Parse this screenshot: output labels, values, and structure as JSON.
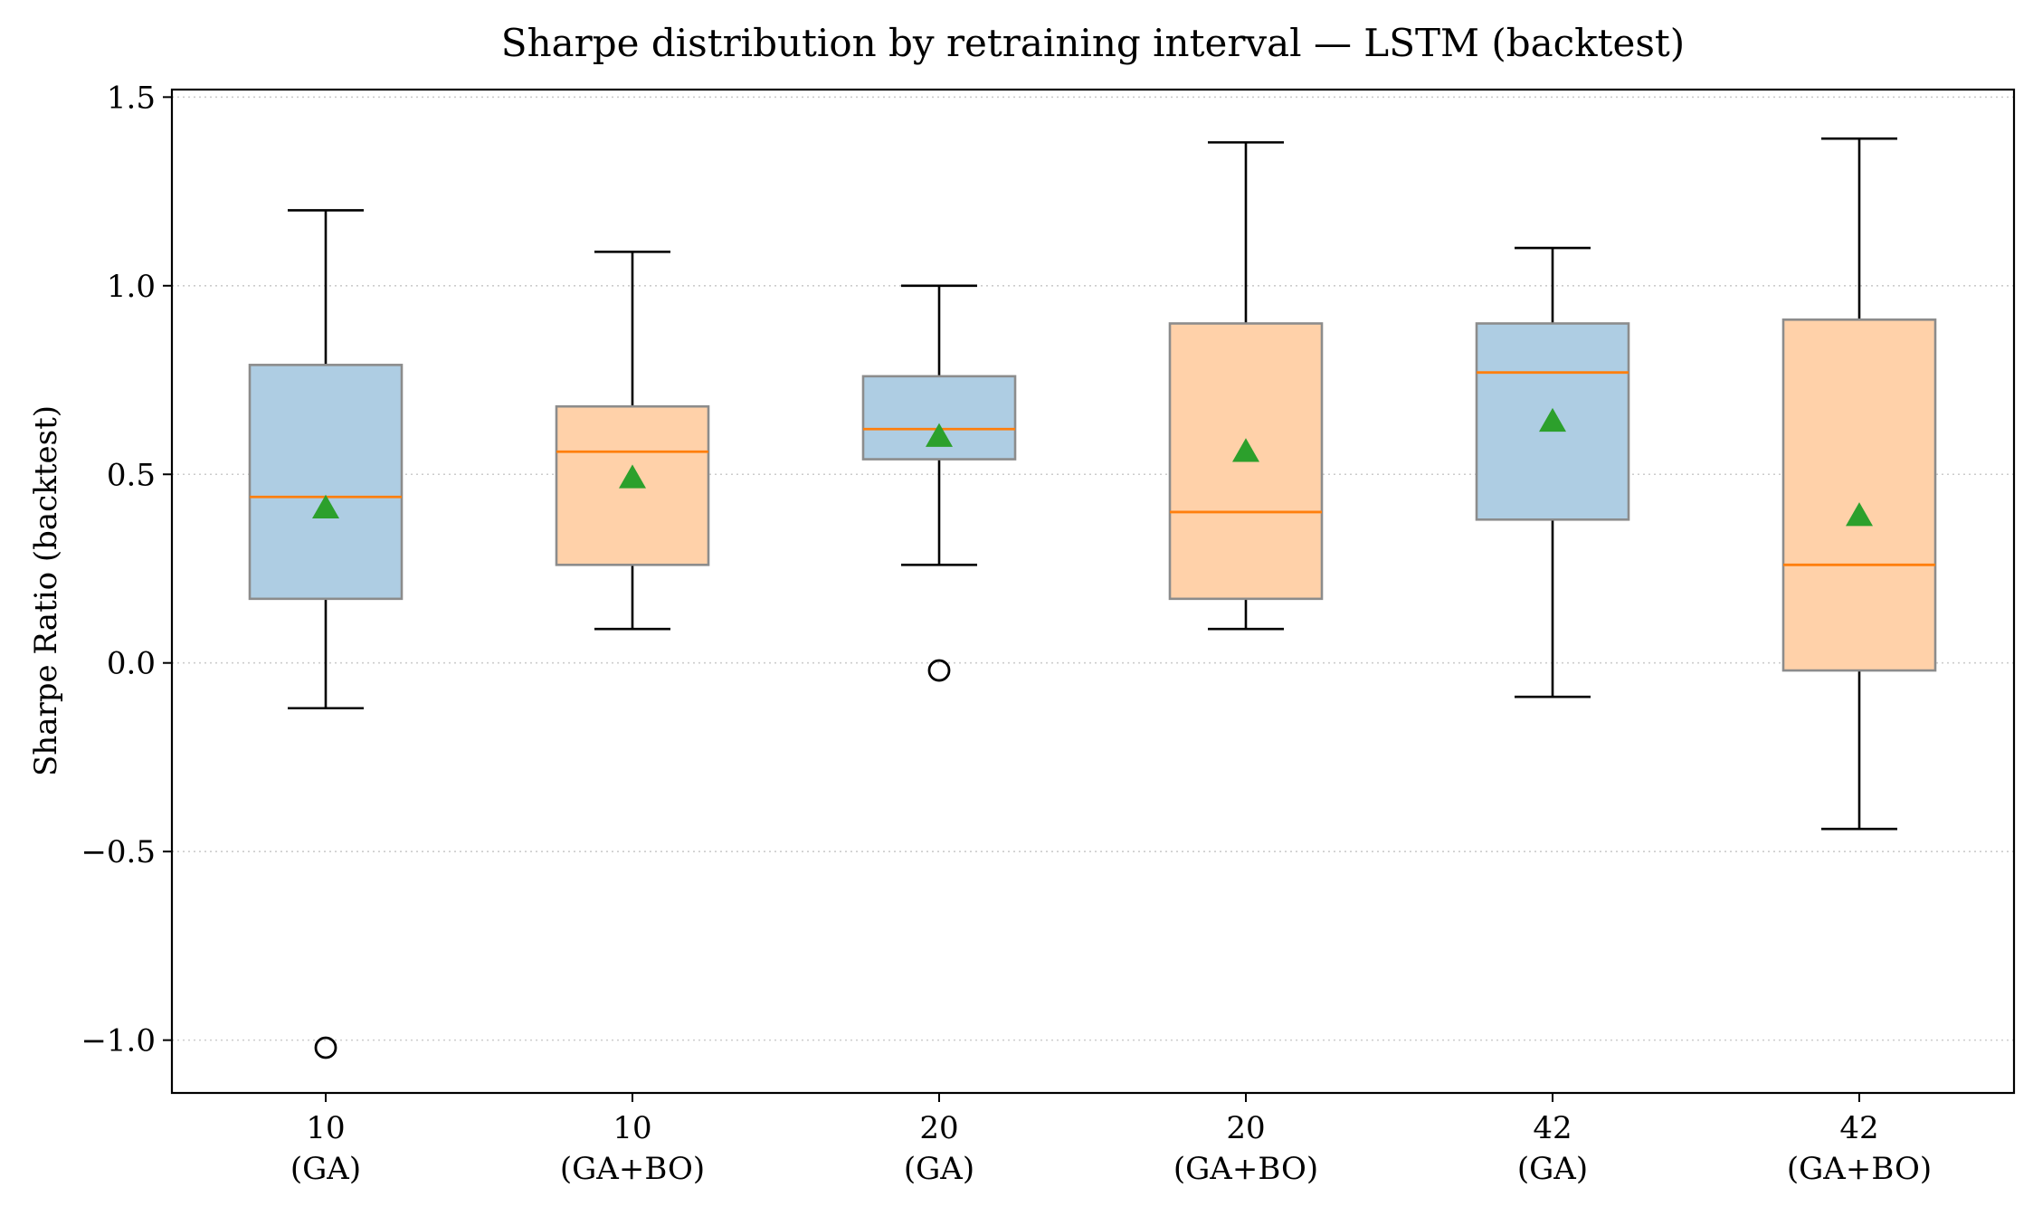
{
  "chart_data": {
    "type": "box",
    "title": "Sharpe distribution by retraining interval — LSTM (backtest)",
    "xlabel": "",
    "ylabel": "Sharpe Ratio (backtest)",
    "ylim": [
      -1.14,
      1.52
    ],
    "yticks": [
      {
        "value": -1.0,
        "label": "−1.0"
      },
      {
        "value": -0.5,
        "label": "−0.5"
      },
      {
        "value": 0.0,
        "label": "0.0"
      },
      {
        "value": 0.5,
        "label": "0.5"
      },
      {
        "value": 1.0,
        "label": "1.0"
      },
      {
        "value": 1.5,
        "label": "1.5"
      }
    ],
    "grid": "horizontal-dotted",
    "categories": [
      {
        "line1": "10",
        "line2": "(GA)"
      },
      {
        "line1": "10",
        "line2": "(GA+BO)"
      },
      {
        "line1": "20",
        "line2": "(GA)"
      },
      {
        "line1": "20",
        "line2": "(GA+BO)"
      },
      {
        "line1": "42",
        "line2": "(GA)"
      },
      {
        "line1": "42",
        "line2": "(GA+BO)"
      }
    ],
    "boxes": [
      {
        "whisker_low": -0.12,
        "q1": 0.17,
        "median": 0.44,
        "q3": 0.79,
        "whisker_high": 1.2,
        "mean": 0.41,
        "outliers": [
          -1.02
        ],
        "fill": "#aecde3"
      },
      {
        "whisker_low": 0.09,
        "q1": 0.26,
        "median": 0.56,
        "q3": 0.68,
        "whisker_high": 1.09,
        "mean": 0.49,
        "outliers": [],
        "fill": "#ffd1a9"
      },
      {
        "whisker_low": 0.26,
        "q1": 0.54,
        "median": 0.62,
        "q3": 0.76,
        "whisker_high": 1.0,
        "mean": 0.6,
        "outliers": [
          -0.02
        ],
        "fill": "#aecde3"
      },
      {
        "whisker_low": 0.09,
        "q1": 0.17,
        "median": 0.4,
        "q3": 0.9,
        "whisker_high": 1.38,
        "mean": 0.56,
        "outliers": [],
        "fill": "#ffd1a9"
      },
      {
        "whisker_low": -0.09,
        "q1": 0.38,
        "median": 0.77,
        "q3": 0.9,
        "whisker_high": 1.1,
        "mean": 0.64,
        "outliers": [],
        "fill": "#aecde3"
      },
      {
        "whisker_low": -0.44,
        "q1": -0.02,
        "median": 0.26,
        "q3": 0.91,
        "whisker_high": 1.39,
        "mean": 0.39,
        "outliers": [],
        "fill": "#ffd1a9"
      }
    ],
    "colors": {
      "median": "#ff7f0e",
      "mean_marker": "#2ca02c",
      "box_edge": "#8c8c8c",
      "whisker": "#000000",
      "grid": "#cccccc"
    }
  }
}
